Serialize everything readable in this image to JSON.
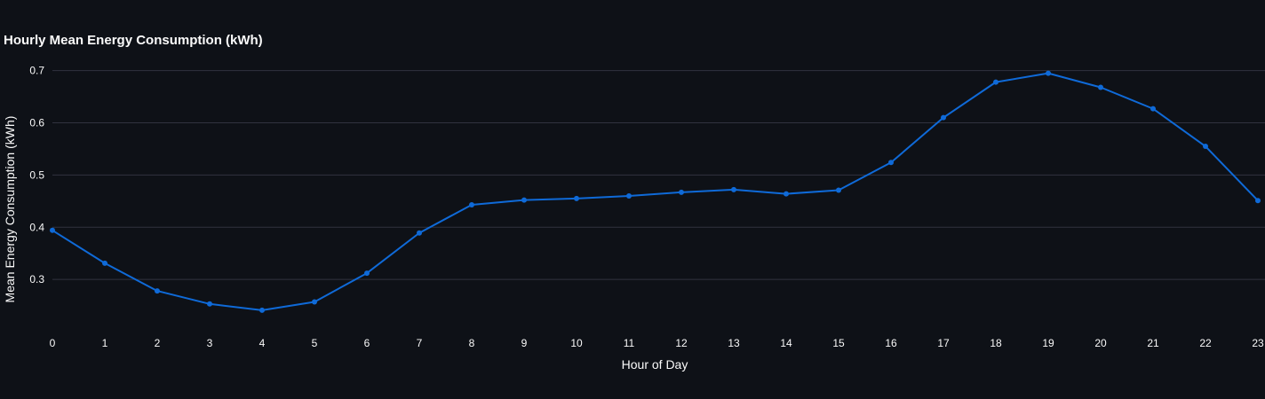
{
  "chart_data": {
    "type": "line",
    "title": "Hourly Mean Energy Consumption (kWh)",
    "xlabel": "Hour of Day",
    "ylabel": "Mean Energy Consumption (kWh)",
    "x": [
      0,
      1,
      2,
      3,
      4,
      5,
      6,
      7,
      8,
      9,
      10,
      11,
      12,
      13,
      14,
      15,
      16,
      17,
      18,
      19,
      20,
      21,
      22,
      23
    ],
    "x_tick_labels": [
      "0",
      "1",
      "2",
      "3",
      "4",
      "5",
      "6",
      "7",
      "8",
      "9",
      "10",
      "11",
      "12",
      "13",
      "14",
      "15",
      "16",
      "17",
      "18",
      "19",
      "20",
      "21",
      "22",
      "23"
    ],
    "y_tick_values": [
      0.3,
      0.4,
      0.5,
      0.6,
      0.7
    ],
    "y_tick_labels": [
      "0.3",
      "0.4",
      "0.5",
      "0.6",
      "0.7"
    ],
    "series": [
      {
        "values": [
          0.394,
          0.331,
          0.278,
          0.253,
          0.241,
          0.257,
          0.312,
          0.389,
          0.443,
          0.452,
          0.455,
          0.46,
          0.467,
          0.472,
          0.464,
          0.471,
          0.524,
          0.61,
          0.678,
          0.695,
          0.668,
          0.627,
          0.555,
          0.451
        ],
        "color": "#0f6ad8"
      }
    ],
    "xlim": [
      0,
      23
    ],
    "ylim": [
      0.2,
      0.73
    ],
    "grid": true,
    "background_color": "#0e1117",
    "grid_color": "#31333f",
    "text_color": "#fafafa"
  }
}
